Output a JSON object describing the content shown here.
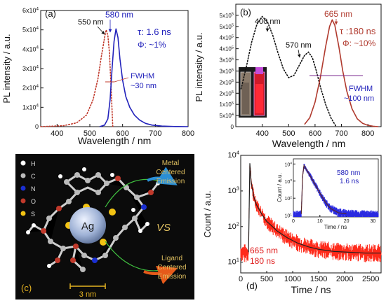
{
  "colors": {
    "blue": "#2222bb",
    "red": "#c0392b",
    "brown_red": "#b03a2e",
    "dark": "#111111",
    "gray_dots": "#888888",
    "orange_gold": "#e6b422",
    "purple": "#7b2a8f",
    "panel_c_bg": "#0b0b0b",
    "decay_red": "#ff2a1a",
    "inset_blue": "#2a2ae0"
  },
  "chart_data": [
    {
      "id": "a",
      "type": "line",
      "panel_label": "(a)",
      "xlabel": "Wavelength / nm",
      "ylabel": "PL intensity / a.u.",
      "xlim": [
        350,
        800
      ],
      "ylim": [
        0,
        60000
      ],
      "x_ticks": [
        400,
        500,
        600,
        700,
        800
      ],
      "x_tick_labels": [
        "400",
        "500",
        "600",
        "700",
        "800"
      ],
      "y_ticks": [
        0,
        10000,
        20000,
        30000,
        40000,
        50000,
        60000
      ],
      "y_tick_labels": [
        "0",
        "1x10^4",
        "2x10^4",
        "3x10^4",
        "4x10^4",
        "5x10^4",
        "6x10^4"
      ],
      "series": [
        {
          "style": "dotted",
          "color": "#c0392b",
          "x": [
            350,
            420,
            460,
            490,
            510,
            525,
            535,
            545,
            550,
            555,
            560,
            565,
            570
          ],
          "y": [
            0,
            500,
            2000,
            6000,
            14000,
            25000,
            36000,
            46000,
            50000,
            47000,
            38000,
            20000,
            0
          ]
        },
        {
          "style": "solid",
          "color": "#2222bb",
          "x": [
            530,
            545,
            555,
            562,
            568,
            574,
            580,
            586,
            592,
            600,
            610,
            622,
            636,
            652,
            670,
            690,
            720,
            760,
            800
          ],
          "y": [
            0,
            800,
            4000,
            14000,
            30000,
            44000,
            50500,
            46000,
            35000,
            24000,
            15500,
            10000,
            6000,
            3400,
            1700,
            800,
            300,
            80,
            0
          ]
        }
      ],
      "annotations": {
        "peak_em": "580 nm",
        "peak_ex": "550 nm",
        "tau": "τ: 1.6 ns",
        "phi": "Φ: ~1%",
        "fwhm_1": "FWHM",
        "fwhm_2": "~30 nm"
      }
    },
    {
      "id": "b",
      "type": "line",
      "panel_label": "(b)",
      "xlabel": "Wavelength / nm",
      "ylabel": "PL intensity / a.u.",
      "xlim": [
        300,
        850
      ],
      "ylim": [
        0,
        550000
      ],
      "x_ticks": [
        400,
        500,
        600,
        700,
        800
      ],
      "x_tick_labels": [
        "400",
        "500",
        "600",
        "700",
        "800"
      ],
      "y_ticks": [
        0,
        50000,
        100000,
        150000,
        200000,
        250000,
        300000,
        350000,
        400000,
        450000,
        500000
      ],
      "y_tick_labels": [
        "0",
        "5x10^4",
        "1x10^5",
        "2x10^5",
        "2x10^5",
        "3x10^5",
        "3x10^5",
        "4x10^5",
        "4x10^5",
        "5x10^5",
        "5x10^5"
      ],
      "series": [
        {
          "style": "dotted",
          "color": "#111111",
          "x": [
            320,
            340,
            360,
            380,
            400,
            420,
            440,
            460,
            480,
            500,
            520,
            540,
            560,
            575,
            590,
            605,
            620,
            640,
            660,
            680
          ],
          "y": [
            170000,
            270000,
            380000,
            460000,
            495000,
            470000,
            410000,
            330000,
            260000,
            220000,
            230000,
            275000,
            320000,
            335000,
            310000,
            250000,
            180000,
            100000,
            40000,
            0
          ]
        },
        {
          "style": "solid",
          "color": "#b03a2e",
          "x": [
            560,
            580,
            600,
            620,
            640,
            655,
            665,
            675,
            690,
            705,
            720,
            740,
            760,
            780,
            800,
            820,
            840
          ],
          "y": [
            10000,
            40000,
            110000,
            220000,
            360000,
            450000,
            480000,
            455000,
            360000,
            250000,
            160000,
            80000,
            35000,
            15000,
            6000,
            2000,
            0
          ]
        }
      ],
      "annotations": {
        "peak_ex1": "400 nm",
        "peak_ex2": "570 nm",
        "peak_em": "665 nm",
        "tau": "τ :180 ns",
        "phi": "Φ: ~10%",
        "fwhm_1": "FWHM",
        "fwhm_2": "~100 nm"
      }
    },
    {
      "id": "d",
      "type": "line",
      "panel_label": "(d)",
      "xlabel": "Time / ns",
      "ylabel": "Count / a.u.",
      "xlim": [
        0,
        2700
      ],
      "ylim_log": [
        5,
        10000
      ],
      "log_y": true,
      "x_ticks": [
        0,
        500,
        1000,
        1500,
        2000,
        2500
      ],
      "x_tick_labels": [
        "0",
        "500",
        "1000",
        "1500",
        "2000",
        "2500"
      ],
      "y_ticks": [
        10,
        100,
        1000,
        10000
      ],
      "y_tick_labels": [
        "10^1",
        "10^2",
        "10^3",
        "10^4"
      ],
      "series": [
        {
          "style": "noisy",
          "color": "#ff2a1a",
          "x": [
            0,
            100,
            150,
            160,
            175,
            200,
            250,
            300,
            400,
            500,
            700,
            900,
            1100,
            1300,
            1500,
            1800,
            2100,
            2400,
            2700
          ],
          "y": [
            18,
            18,
            19,
            200,
            6000,
            1800,
            700,
            420,
            230,
            140,
            75,
            48,
            34,
            27,
            23,
            20,
            19,
            18,
            18
          ]
        },
        {
          "style": "solid",
          "color": "#222222",
          "x": [
            150,
            160,
            175,
            200,
            250,
            300,
            400,
            500,
            700,
            900,
            1100,
            1300,
            1500,
            1800,
            2100,
            2400,
            2700
          ],
          "y": [
            19,
            200,
            6000,
            1800,
            700,
            420,
            230,
            140,
            75,
            48,
            34,
            27,
            23,
            20,
            19,
            18,
            18
          ]
        }
      ],
      "annotations": {
        "line1": "665 nm",
        "line2": "180 ns"
      },
      "inset": {
        "xlabel": "Time / ns",
        "ylabel": "Count / a.u.",
        "xlim": [
          0,
          32
        ],
        "x_ticks": [
          0,
          10,
          20,
          30
        ],
        "x_tick_labels": [
          "0",
          "10",
          "20",
          "30"
        ],
        "y_ticks": [
          10,
          100,
          1000,
          10000
        ],
        "y_tick_labels": [
          "10^1",
          "10^2",
          "10^3",
          "10^4"
        ],
        "series": [
          {
            "style": "noisy",
            "color": "#2a2ae0",
            "x": [
              0,
              2,
              3,
              3.5,
              4,
              6,
              8,
              10,
              12,
              14,
              17,
              20,
              25,
              32
            ],
            "y": [
              10,
              10,
              12,
              2000,
              8000,
              2500,
              700,
              200,
              60,
              25,
              14,
              12,
              11,
              10
            ]
          },
          {
            "style": "solid",
            "color": "#5a2a2a",
            "x": [
              3,
              3.5,
              4,
              6,
              8,
              10,
              12,
              14,
              17,
              20
            ],
            "y": [
              12,
              2000,
              8000,
              2500,
              700,
              200,
              60,
              25,
              14,
              12
            ]
          }
        ],
        "annotations": {
          "line1": "580 nm",
          "line2": "1.6 ns"
        }
      }
    }
  ],
  "panel_c": {
    "panel_label": "(c)",
    "legend": [
      "H",
      "C",
      "N",
      "O",
      "S"
    ],
    "legend_colors": [
      "#ffffff",
      "#bbbbbb",
      "#1a2fd1",
      "#c0392b",
      "#f3c313"
    ],
    "center_label": "Ag",
    "vs_label": "VS",
    "metal_1": "Metal",
    "metal_2": "Centered",
    "metal_3": "Emission",
    "ligand_1": "Ligand",
    "ligand_2": "Centered",
    "ligand_3": "Emission",
    "scale_label": "3 nm"
  }
}
